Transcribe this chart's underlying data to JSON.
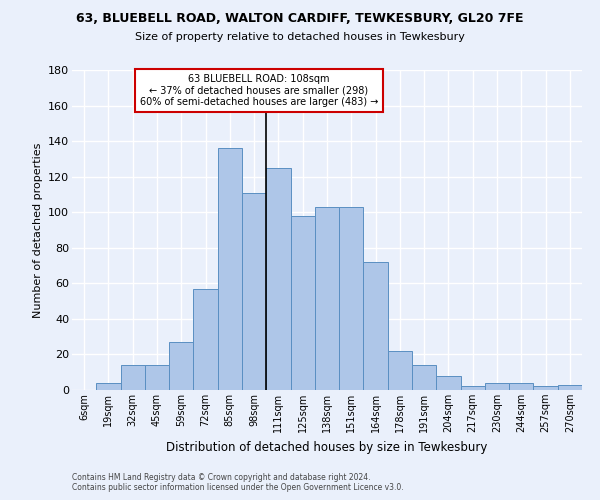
{
  "title1": "63, BLUEBELL ROAD, WALTON CARDIFF, TEWKESBURY, GL20 7FE",
  "title2": "Size of property relative to detached houses in Tewkesbury",
  "xlabel": "Distribution of detached houses by size in Tewkesbury",
  "ylabel": "Number of detached properties",
  "footnote1": "Contains HM Land Registry data © Crown copyright and database right 2024.",
  "footnote2": "Contains public sector information licensed under the Open Government Licence v3.0.",
  "bar_labels": [
    "6sqm",
    "19sqm",
    "32sqm",
    "45sqm",
    "59sqm",
    "72sqm",
    "85sqm",
    "98sqm",
    "111sqm",
    "125sqm",
    "138sqm",
    "151sqm",
    "164sqm",
    "178sqm",
    "191sqm",
    "204sqm",
    "217sqm",
    "230sqm",
    "244sqm",
    "257sqm",
    "270sqm"
  ],
  "bar_values": [
    0,
    4,
    14,
    14,
    27,
    57,
    136,
    111,
    125,
    98,
    103,
    103,
    72,
    22,
    14,
    8,
    2,
    4,
    4,
    2,
    3
  ],
  "bar_color": "#aec6e8",
  "bar_edge_color": "#5a8fc2",
  "bg_color": "#eaf0fb",
  "plot_bg_color": "#eaf0fb",
  "grid_color": "#ffffff",
  "vline_x_index": 8,
  "vline_color": "#000000",
  "annotation_text": "63 BLUEBELL ROAD: 108sqm\n← 37% of detached houses are smaller (298)\n60% of semi-detached houses are larger (483) →",
  "annotation_box_facecolor": "#ffffff",
  "annotation_box_edgecolor": "#cc0000",
  "ylim": [
    0,
    180
  ],
  "yticks": [
    0,
    20,
    40,
    60,
    80,
    100,
    120,
    140,
    160,
    180
  ]
}
